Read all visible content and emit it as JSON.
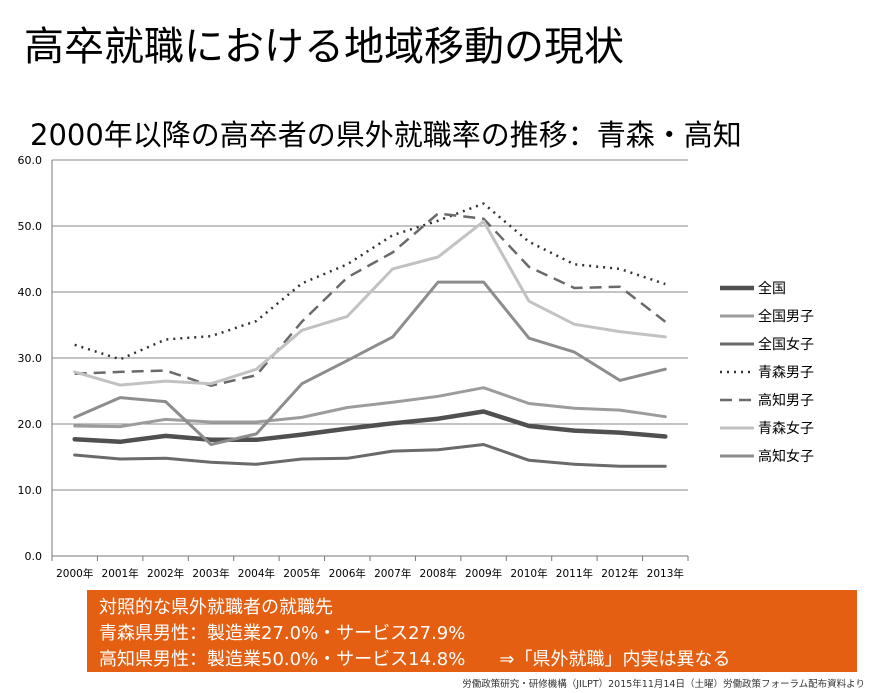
{
  "slide": {
    "title": "高卒就職における地域移動の現状",
    "subtitle": "2000年以降の高卒者の県外就職率の推移：青森・高知"
  },
  "chart_data": {
    "type": "line",
    "categories": [
      "2000年",
      "2001年",
      "2002年",
      "2003年",
      "2004年",
      "2005年",
      "2006年",
      "2007年",
      "2008年",
      "2009年",
      "2010年",
      "2011年",
      "2012年",
      "2013年"
    ],
    "ylim": [
      0,
      60
    ],
    "yticks": [
      "0.0",
      "10.0",
      "20.0",
      "30.0",
      "40.0",
      "50.0",
      "60.0"
    ],
    "grid": true,
    "legend_position": "right",
    "series": [
      {
        "name": "全国",
        "color": "#505050",
        "width": 4.5,
        "dash": "",
        "values": [
          17.7,
          17.3,
          18.2,
          17.6,
          17.6,
          18.4,
          19.3,
          20.1,
          20.8,
          21.9,
          19.7,
          19.0,
          18.7,
          18.1
        ]
      },
      {
        "name": "全国男子",
        "color": "#9c9c9c",
        "width": 3,
        "dash": "",
        "values": [
          19.7,
          19.6,
          20.7,
          20.3,
          20.3,
          21.0,
          22.5,
          23.3,
          24.2,
          25.5,
          23.1,
          22.4,
          22.1,
          21.1
        ]
      },
      {
        "name": "全国女子",
        "color": "#6a6a6a",
        "width": 3,
        "dash": "",
        "values": [
          15.3,
          14.7,
          14.8,
          14.2,
          13.9,
          14.7,
          14.8,
          15.9,
          16.1,
          16.9,
          14.5,
          13.9,
          13.6,
          13.6
        ]
      },
      {
        "name": "青森男子",
        "color": "#333333",
        "width": 2.5,
        "dash": "2,5",
        "values": [
          32.0,
          29.8,
          32.8,
          33.3,
          35.6,
          41.3,
          44.2,
          48.6,
          50.8,
          53.4,
          47.6,
          44.2,
          43.5,
          41.2
        ]
      },
      {
        "name": "高知男子",
        "color": "#6a6a6a",
        "width": 2.5,
        "dash": "12,7",
        "values": [
          27.6,
          27.9,
          28.1,
          25.8,
          27.4,
          35.5,
          42.2,
          46.0,
          51.9,
          51.1,
          43.8,
          40.6,
          40.8,
          35.5
        ]
      },
      {
        "name": "青森女子",
        "color": "#c2c2c2",
        "width": 3,
        "dash": "",
        "values": [
          27.9,
          25.9,
          26.5,
          26.1,
          28.3,
          34.2,
          36.3,
          43.5,
          45.3,
          50.7,
          38.6,
          35.1,
          34.0,
          33.2
        ]
      },
      {
        "name": "高知女子",
        "color": "#8d8d8d",
        "width": 3,
        "dash": "",
        "values": [
          21.0,
          24.0,
          23.4,
          16.9,
          18.5,
          26.1,
          29.6,
          33.2,
          41.5,
          41.5,
          33.0,
          30.9,
          26.6,
          28.3
        ]
      }
    ]
  },
  "callout": {
    "heading": "対照的な県外就職者の就職先",
    "line1": "青森県男性：製造業27.0%・サービス27.9%",
    "line2": "高知県男性：製造業50.0%・サービス14.8%",
    "note": "⇒「県外就職」内実は異なる"
  },
  "footer": "労働政策研究・研修機構（JILPT）2015年11月14日（土曜）労働政策フォーラム配布資料より"
}
